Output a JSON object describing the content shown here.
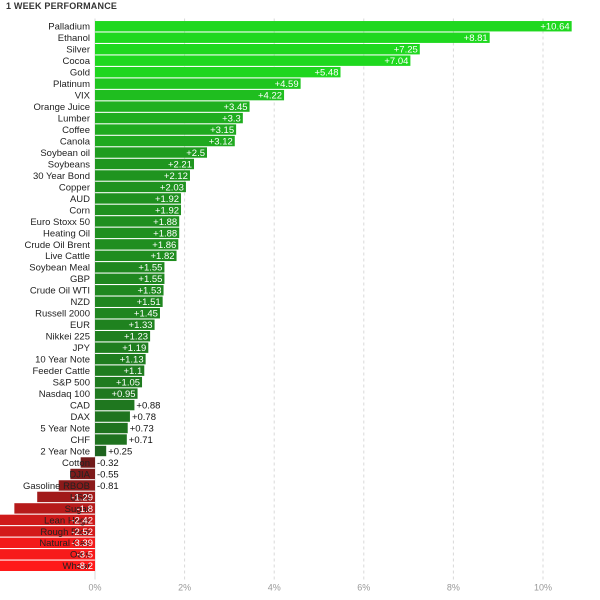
{
  "chart_data": {
    "type": "bar",
    "orientation": "horizontal",
    "title": "1 WEEK PERFORMANCE",
    "xlabel": "",
    "ylabel": "",
    "xlim": [
      0,
      11.2
    ],
    "x_ticks": [
      0,
      2,
      4,
      6,
      8,
      10
    ],
    "x_tick_labels": [
      "0%",
      "2%",
      "4%",
      "6%",
      "8%",
      "10%"
    ],
    "grid": "vertical-dashed",
    "positive_color": "#1fd81f",
    "positive_dark_color": "#1f5a1f",
    "negative_color": "#ff1a1a",
    "negative_dark_color": "#5a1a1a",
    "categories": [
      "Palladium",
      "Ethanol",
      "Silver",
      "Cocoa",
      "Gold",
      "Platinum",
      "VIX",
      "Orange Juice",
      "Lumber",
      "Coffee",
      "Canola",
      "Soybean oil",
      "Soybeans",
      "30 Year Bond",
      "Copper",
      "AUD",
      "Corn",
      "Euro Stoxx 50",
      "Heating Oil",
      "Crude Oil Brent",
      "Live Cattle",
      "Soybean Meal",
      "GBP",
      "Crude Oil WTI",
      "NZD",
      "Russell 2000",
      "EUR",
      "Nikkei 225",
      "JPY",
      "10 Year Note",
      "Feeder Cattle",
      "S&P 500",
      "Nasdaq 100",
      "CAD",
      "DAX",
      "5 Year Note",
      "CHF",
      "2 Year Note",
      "Cotton",
      "DJIA",
      "Gasoline RBOB",
      "USD",
      "Sugar",
      "Lean Hogs",
      "Rough Rice",
      "Natural Gas",
      "Oats",
      "Wheat"
    ],
    "values": [
      10.64,
      8.81,
      7.25,
      7.04,
      5.48,
      4.59,
      4.22,
      3.45,
      3.3,
      3.15,
      3.12,
      2.5,
      2.21,
      2.12,
      2.03,
      1.92,
      1.92,
      1.88,
      1.88,
      1.86,
      1.82,
      1.55,
      1.55,
      1.53,
      1.51,
      1.45,
      1.33,
      1.23,
      1.19,
      1.13,
      1.1,
      1.05,
      0.95,
      0.88,
      0.78,
      0.73,
      0.71,
      0.25,
      -0.32,
      -0.55,
      -0.81,
      -1.29,
      -1.8,
      -2.42,
      -2.52,
      -3.39,
      -3.5,
      -8.2
    ],
    "value_labels": [
      "+10.64",
      "+8.81",
      "+7.25",
      "+7.04",
      "+5.48",
      "+4.59",
      "+4.22",
      "+3.45",
      "+3.3",
      "+3.15",
      "+3.12",
      "+2.5",
      "+2.21",
      "+2.12",
      "+2.03",
      "+1.92",
      "+1.92",
      "+1.88",
      "+1.88",
      "+1.86",
      "+1.82",
      "+1.55",
      "+1.55",
      "+1.53",
      "+1.51",
      "+1.45",
      "+1.33",
      "+1.23",
      "+1.19",
      "+1.13",
      "+1.1",
      "+1.05",
      "+0.95",
      "+0.88",
      "+0.78",
      "+0.73",
      "+0.71",
      "+0.25",
      "-0.32",
      "-0.55",
      "-0.81",
      "-1.29",
      "-1.8",
      "-2.42",
      "-2.52",
      "-3.39",
      "-3.5",
      "-8.2"
    ]
  }
}
